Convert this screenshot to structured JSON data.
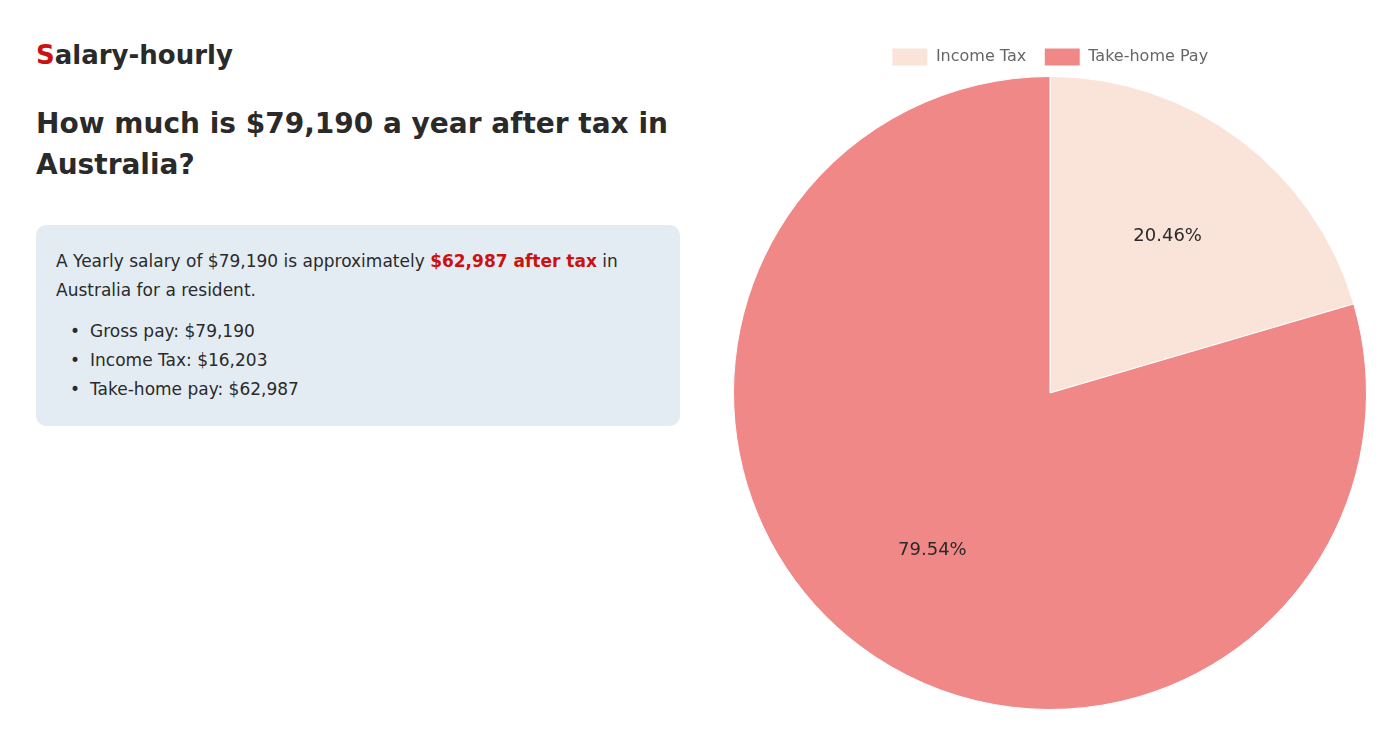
{
  "chart_data": {
    "type": "pie",
    "title": [
      "How much is $79,190 a year after tax in",
      "Australia?"
    ],
    "annotations": [
      [
        {
          "text": "S",
          "color": "#cc1111"
        },
        {
          "text": "alary-hourly"
        }
      ],
      [
        {
          "text": "A Yearly salary of $79,190 is approximately "
        },
        {
          "text": "$62,987 after tax",
          "color": "#cc1111"
        },
        {
          "text": " in"
        }
      ],
      [
        {
          "text": "Australia for a resident."
        }
      ],
      [
        {
          "text": "•"
        },
        {
          "text": "Gross pay: $79,190"
        }
      ],
      [
        {
          "text": "•"
        },
        {
          "text": "Income Tax: $16,203"
        }
      ],
      [
        {
          "text": "•"
        },
        {
          "text": "Take-home pay: $62,987"
        }
      ]
    ],
    "categories": [
      "Income Tax",
      "Take-home Pay"
    ],
    "values": [
      20.46,
      79.54
    ],
    "value_labels": [
      "20.46%",
      "79.54%"
    ],
    "colors": [
      "#fae3d9",
      "#f08888"
    ],
    "data_labels": true,
    "legend": "top"
  }
}
